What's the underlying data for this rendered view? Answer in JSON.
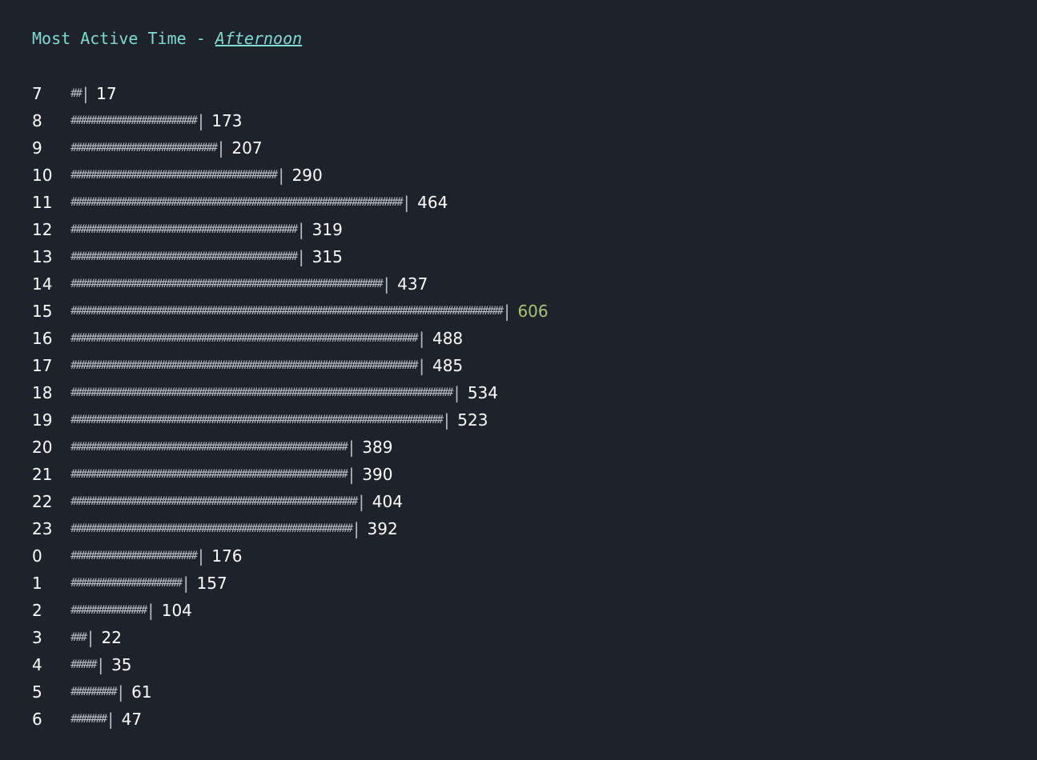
{
  "header": {
    "prefix": "Most Active Time - ",
    "highlight": "Afternoon"
  },
  "chart_data": {
    "type": "bar",
    "orientation": "horizontal",
    "categories": [
      "7",
      "8",
      "9",
      "10",
      "11",
      "12",
      "13",
      "14",
      "15",
      "16",
      "17",
      "18",
      "19",
      "20",
      "21",
      "22",
      "23",
      "0",
      "1",
      "2",
      "3",
      "4",
      "5",
      "6"
    ],
    "values": [
      17,
      173,
      207,
      290,
      464,
      319,
      315,
      437,
      606,
      488,
      485,
      534,
      523,
      389,
      390,
      404,
      392,
      176,
      157,
      104,
      22,
      35,
      61,
      47
    ],
    "bar_glyph": "#",
    "separator": "|",
    "max_color": "#a9c377"
  }
}
